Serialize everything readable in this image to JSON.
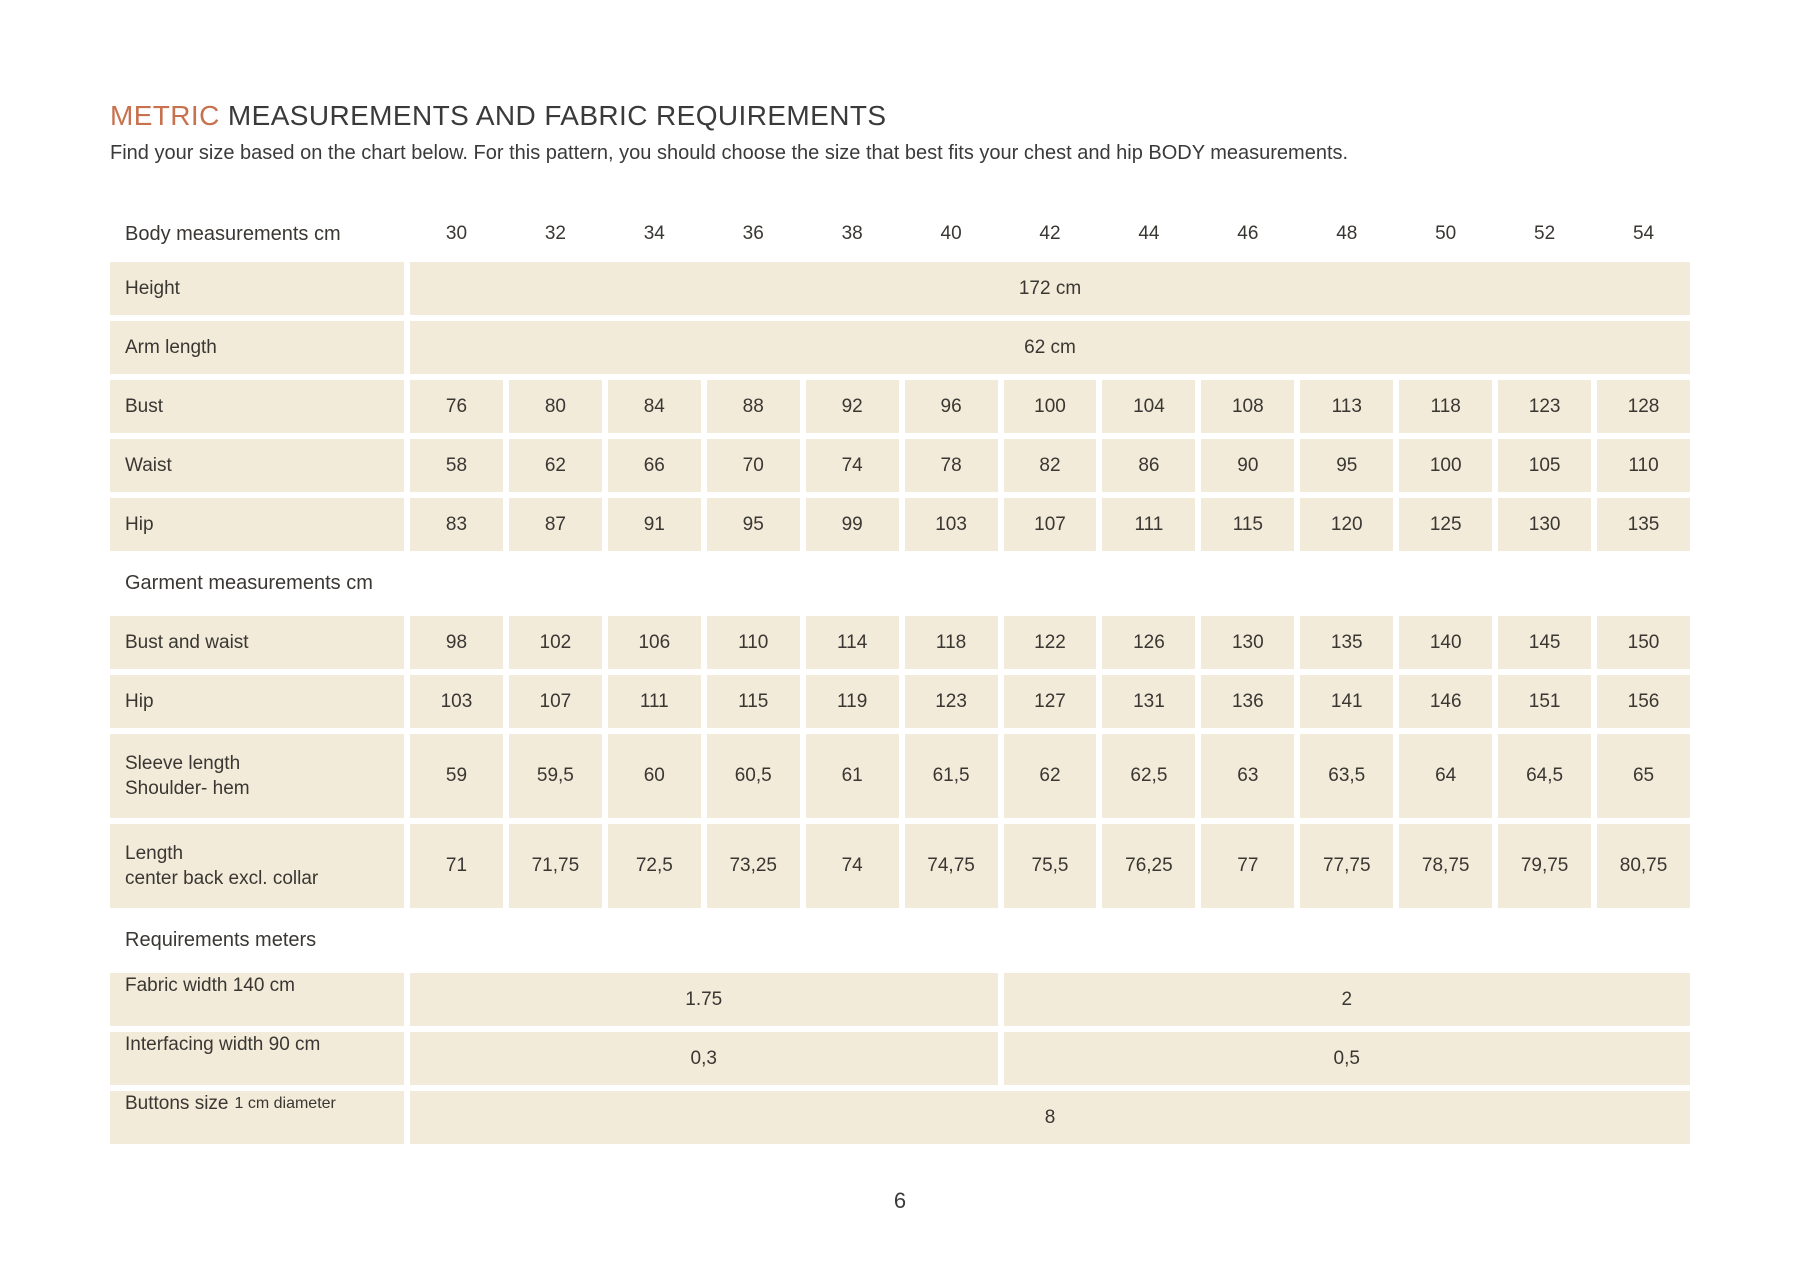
{
  "page": {
    "title_highlight": "METRIC",
    "title_rest": " MEASUREMENTS AND FABRIC REQUIREMENTS",
    "subtitle": "Find your size based on the chart below. For this pattern, you should choose the size that best fits your chest and hip BODY measurements.",
    "page_number": "6"
  },
  "colors": {
    "accent": "#c8714e",
    "cell_background": "#f2ebd9",
    "text": "#3a3733"
  },
  "table": {
    "header_label": "Body measurements cm",
    "sizes": [
      "30",
      "32",
      "34",
      "36",
      "38",
      "40",
      "42",
      "44",
      "46",
      "48",
      "50",
      "52",
      "54"
    ],
    "body_rows": [
      {
        "label": "Height",
        "span_value": "172 cm"
      },
      {
        "label": "Arm length",
        "span_value": "62 cm"
      },
      {
        "label": "Bust",
        "values": [
          "76",
          "80",
          "84",
          "88",
          "92",
          "96",
          "100",
          "104",
          "108",
          "113",
          "118",
          "123",
          "128"
        ]
      },
      {
        "label": "Waist",
        "values": [
          "58",
          "62",
          "66",
          "70",
          "74",
          "78",
          "82",
          "86",
          "90",
          "95",
          "100",
          "105",
          "110"
        ]
      },
      {
        "label": "Hip",
        "values": [
          "83",
          "87",
          "91",
          "95",
          "99",
          "103",
          "107",
          "111",
          "115",
          "120",
          "125",
          "130",
          "135"
        ]
      }
    ],
    "garment_header": "Garment measurements cm",
    "garment_rows": [
      {
        "label": "Bust and waist",
        "values": [
          "98",
          "102",
          "106",
          "110",
          "114",
          "118",
          "122",
          "126",
          "130",
          "135",
          "140",
          "145",
          "150"
        ]
      },
      {
        "label": "Hip",
        "values": [
          "103",
          "107",
          "111",
          "115",
          "119",
          "123",
          "127",
          "131",
          "136",
          "141",
          "146",
          "151",
          "156"
        ]
      },
      {
        "label": "Sleeve length",
        "label2": "Shoulder- hem",
        "values": [
          "59",
          "59,5",
          "60",
          "60,5",
          "61",
          "61,5",
          "62",
          "62,5",
          "63",
          "63,5",
          "64",
          "64,5",
          "65"
        ]
      },
      {
        "label": "Length",
        "label2": "center back excl. collar",
        "values": [
          "71",
          "71,75",
          "72,5",
          "73,25",
          "74",
          "74,75",
          "75,5",
          "76,25",
          "77",
          "77,75",
          "78,75",
          "79,75",
          "80,75"
        ]
      }
    ],
    "requirements_header": "Requirements meters",
    "requirement_rows": [
      {
        "label": "Fabric width 140 cm",
        "left_value": "1.75",
        "right_value": "2"
      },
      {
        "label": "Interfacing width 90 cm",
        "left_value": "0,3",
        "right_value": "0,5"
      },
      {
        "label": "Buttons size",
        "label_small": "1 cm diameter",
        "full_value": "8"
      }
    ]
  }
}
